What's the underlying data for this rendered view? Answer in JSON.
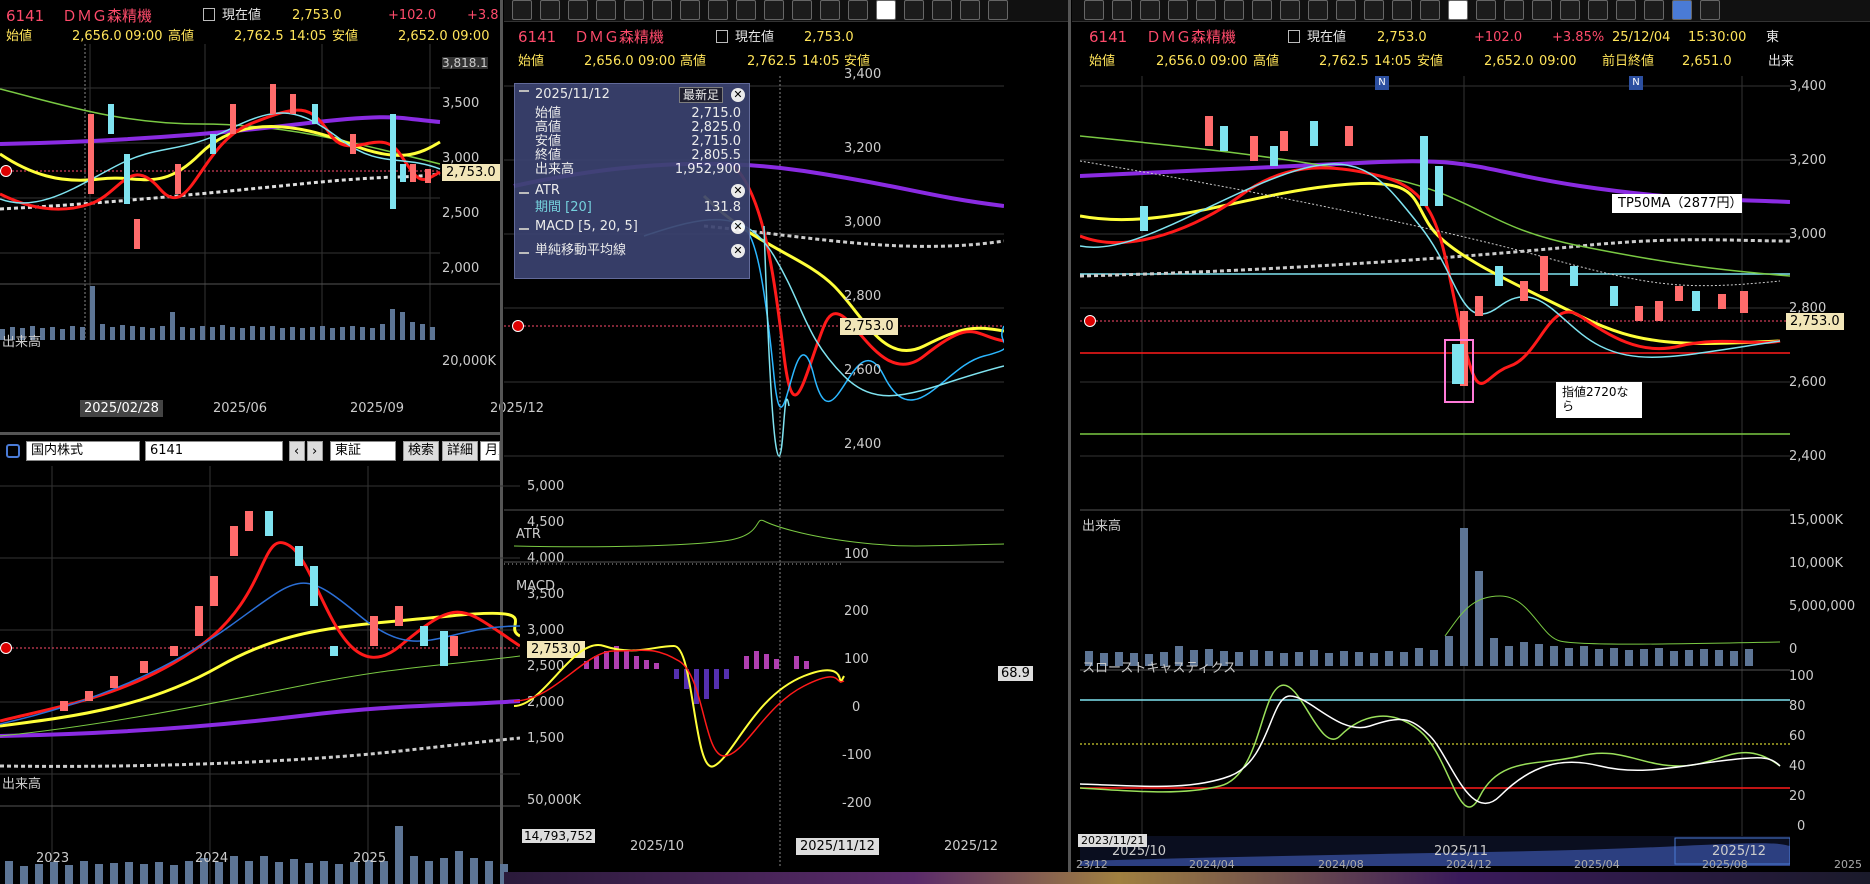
{
  "panel1": {
    "code": "6141",
    "name": "ＤＭＧ森精機",
    "cur_label": "現在値",
    "cur_val": "2,753.0",
    "chg": "+102.0",
    "chg2": "+3.8",
    "open_label": "始値",
    "open_val": "2,656.0",
    "open_time": "09:00",
    "high_label": "高値",
    "high_val": "2,762.5",
    "high_time": "14:05",
    "low_label": "安値",
    "low_val": "2,652.0",
    "low_time": "09:00",
    "yticks": [
      "3,818.1",
      "3,500",
      "3,000",
      "2,500",
      "2,000"
    ],
    "price_tag": "2,753.0",
    "vol_label": "出来高",
    "vol_tick": "20,000K",
    "dates": [
      "2025/02/28",
      "2025/06",
      "2025/09",
      "2025/12"
    ],
    "cursor_date": "2025/02/28"
  },
  "panel2": {
    "market": "国内株式",
    "code": "6141",
    "exchange": "東証",
    "search": "検索",
    "detail": "詳細",
    "period": "月足",
    "yticks": [
      "5,000",
      "4,500",
      "4,000",
      "3,500",
      "3,000",
      "2,500",
      "2,000",
      "1,500"
    ],
    "price_tag": "2,753.0",
    "vol_label": "出来高",
    "vol_tick": "50,000K",
    "vol_tag": "14,793,752",
    "years": [
      "2023",
      "2024",
      "2025"
    ]
  },
  "panel3": {
    "code": "6141",
    "name": "ＤＭＧ森精機",
    "cur_label": "現在値",
    "cur_val": "2,753.0",
    "open_label": "始値",
    "open_val": "2,656.0",
    "open_time": "09:00",
    "high_label": "高値",
    "high_val": "2,762.5",
    "high_time": "14:05",
    "low_label": "安値",
    "yticks": [
      "3,400",
      "3,200",
      "3,000",
      "2,800",
      "2,600",
      "2,400"
    ],
    "price_tag": "2,753.0",
    "atr_label": "ATR",
    "atr_tick": "100",
    "macd_label": "MACD",
    "macd_ticks": [
      "200",
      "100",
      "0",
      "-100",
      "-200"
    ],
    "macd_tag": "68.9",
    "dates": [
      "2025/10",
      "2025/11/12",
      "2025/12"
    ],
    "popup": {
      "date": "2025/11/12",
      "newest": "最新足",
      "rows": [
        [
          "始値",
          "2,715.0"
        ],
        [
          "高値",
          "2,825.0"
        ],
        [
          "安値",
          "2,715.0"
        ],
        [
          "終値",
          "2,805.5"
        ],
        [
          "出来高",
          "1,952,900"
        ]
      ],
      "atr": "ATR",
      "period_label": "期間 [20]",
      "period_val": "131.8",
      "macd": "MACD [5, 20, 5]",
      "sma": "単純移動平均線"
    }
  },
  "panel4": {
    "code": "6141",
    "name": "ＤＭＧ森精機",
    "cur_label": "現在値",
    "cur_val": "2,753.0",
    "chg": "+102.0",
    "pct": "+3.85%",
    "date": "25/12/04",
    "time": "15:30:00",
    "exch": "東",
    "open_label": "始値",
    "open_val": "2,656.0",
    "open_time": "09:00",
    "high_label": "高値",
    "high_val": "2,762.5",
    "high_time": "14:05",
    "low_label": "安値",
    "low_val": "2,652.0",
    "low_time": "09:00",
    "prev_label": "前日終値",
    "prev_val": "2,651.0",
    "vol_head": "出来",
    "yticks": [
      "3,400",
      "3,200",
      "3,000",
      "2,800",
      "2,600",
      "2,400"
    ],
    "price_tag": "2,753.0",
    "note1": "TP50MA（2877円）",
    "note2": "指値2720なら",
    "vol_label": "出来高",
    "vol_ticks": [
      "15,000K",
      "10,000K",
      "5,000,000",
      "0"
    ],
    "stoch_label": "スローストキャスティクス",
    "stoch_ticks": [
      "100",
      "80",
      "60",
      "40",
      "20",
      "0"
    ],
    "dates": [
      "2025/10",
      "2025/11",
      "2025/12"
    ],
    "nav_date": "2023/11/21",
    "nav_years": [
      "23/12",
      "2024/04",
      "2024/08",
      "2024/12",
      "2025/04",
      "2025/08",
      "2025"
    ]
  },
  "toolbar_icons": [
    "cursor-icon",
    "pencil-icon",
    "lines-icon",
    "lines2-icon",
    "fan-icon",
    "trend-icon",
    "bars-icon",
    "trend2-icon",
    "angle-icon",
    "pentagon-icon",
    "circle-icon",
    "rect-icon",
    "hline-icon",
    "text-icon",
    "icon-icon",
    "stamp-icon"
  ],
  "colors": {
    "up": "#ff6b6b",
    "down": "#7fe3f0",
    "ma_red": "#ff1a1a",
    "ma_yellow": "#ffff3a",
    "ma_purple": "#8a2be2",
    "accent": "#ff4b6b"
  }
}
